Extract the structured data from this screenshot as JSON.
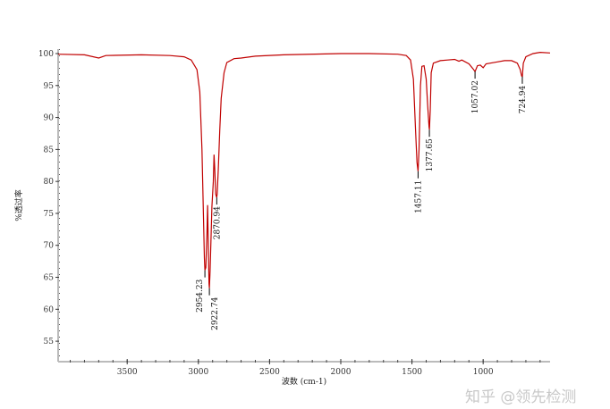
{
  "chart_data": {
    "type": "line",
    "title": "",
    "xlabel": "波数 (cm-1)",
    "ylabel": "%透过率",
    "xlim": [
      3985,
      530
    ],
    "x_reversed": true,
    "ylim": [
      51.8,
      100.7
    ],
    "xticks": [
      3500,
      3000,
      2500,
      2000,
      1500,
      1000
    ],
    "yticks": [
      100,
      95,
      90,
      85,
      80,
      75,
      70,
      65,
      60,
      55
    ],
    "grid": false,
    "line_color": "#c00000",
    "series": [
      {
        "points": [
          [
            3985,
            99.9
          ],
          [
            3800,
            99.8
          ],
          [
            3700,
            99.3
          ],
          [
            3650,
            99.7
          ],
          [
            3400,
            99.8
          ],
          [
            3200,
            99.7
          ],
          [
            3100,
            99.5
          ],
          [
            3050,
            99.0
          ],
          [
            3010,
            97.5
          ],
          [
            2990,
            94
          ],
          [
            2975,
            85
          ],
          [
            2965,
            75
          ],
          [
            2958,
            68
          ],
          [
            2954.23,
            66.1
          ],
          [
            2948,
            66.5
          ],
          [
            2940,
            72
          ],
          [
            2935,
            76.3
          ],
          [
            2930,
            70
          ],
          [
            2925,
            64
          ],
          [
            2922.74,
            63.3
          ],
          [
            2918,
            66
          ],
          [
            2905,
            76
          ],
          [
            2895,
            80
          ],
          [
            2890,
            84.2
          ],
          [
            2885,
            82
          ],
          [
            2878,
            78
          ],
          [
            2870.94,
            77.5
          ],
          [
            2868,
            78
          ],
          [
            2860,
            82
          ],
          [
            2850,
            88
          ],
          [
            2840,
            93
          ],
          [
            2820,
            97
          ],
          [
            2800,
            98.6
          ],
          [
            2750,
            99.2
          ],
          [
            2700,
            99.3
          ],
          [
            2600,
            99.6
          ],
          [
            2400,
            99.8
          ],
          [
            2000,
            100
          ],
          [
            1800,
            100
          ],
          [
            1600,
            99.9
          ],
          [
            1540,
            99.7
          ],
          [
            1510,
            99
          ],
          [
            1490,
            96
          ],
          [
            1475,
            88
          ],
          [
            1465,
            83
          ],
          [
            1457.11,
            81.6
          ],
          [
            1450,
            85
          ],
          [
            1440,
            95
          ],
          [
            1430,
            98
          ],
          [
            1415,
            98.1
          ],
          [
            1400,
            96
          ],
          [
            1390,
            92
          ],
          [
            1380,
            88.5
          ],
          [
            1377.65,
            88.1
          ],
          [
            1372,
            91
          ],
          [
            1365,
            97
          ],
          [
            1350,
            98.5
          ],
          [
            1300,
            98.9
          ],
          [
            1250,
            99
          ],
          [
            1200,
            99.1
          ],
          [
            1170,
            98.8
          ],
          [
            1150,
            99
          ],
          [
            1100,
            98.4
          ],
          [
            1070,
            97.6
          ],
          [
            1057.02,
            97.2
          ],
          [
            1040,
            98.1
          ],
          [
            1020,
            98.2
          ],
          [
            1000,
            97.8
          ],
          [
            980,
            98.4
          ],
          [
            900,
            98.7
          ],
          [
            850,
            98.9
          ],
          [
            800,
            98.9
          ],
          [
            760,
            98.5
          ],
          [
            740,
            97.5
          ],
          [
            730,
            96.5
          ],
          [
            724.94,
            96.4
          ],
          [
            718,
            98.5
          ],
          [
            700,
            99.5
          ],
          [
            650,
            100
          ],
          [
            600,
            100.2
          ],
          [
            530,
            100.1
          ]
        ]
      }
    ],
    "peaks": [
      {
        "label": "2954.23",
        "x": 2954.23,
        "y": 66.1
      },
      {
        "label": "2922.74",
        "x": 2922.74,
        "y": 63.3
      },
      {
        "label": "2870.94",
        "x": 2870.94,
        "y": 77.5
      },
      {
        "label": "1457.11",
        "x": 1457.11,
        "y": 81.6
      },
      {
        "label": "1377.65",
        "x": 1377.65,
        "y": 88.1
      },
      {
        "label": "1057.02",
        "x": 1057.02,
        "y": 97.2
      },
      {
        "label": "724.94",
        "x": 724.94,
        "y": 96.4
      }
    ]
  },
  "watermark": "知乎 @领先检测"
}
